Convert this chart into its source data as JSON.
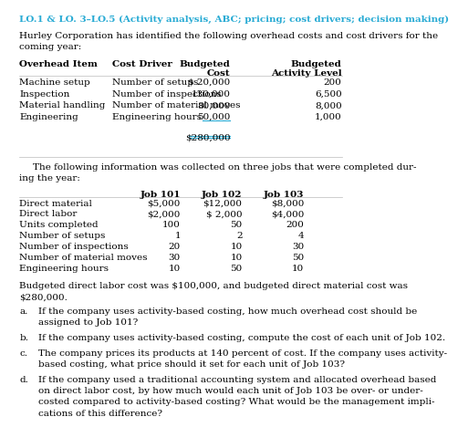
{
  "title": "LO.1 & LO. 3–LO.5 (Activity analysis, ABC; pricing; cost drivers; decision making)",
  "title_color": "#29ABD4",
  "bg_color": "#FFFFFF",
  "text_color": "#000000",
  "line_color": "#BBBBBB",
  "underline_color": "#29ABD4",
  "font_size": 7.5,
  "table1_rows": [
    [
      "Machine setup",
      "Number of setups",
      "$ 20,000",
      "200"
    ],
    [
      "Inspection",
      "Number of inspections",
      "130,000",
      "6,500"
    ],
    [
      "Material handling",
      "Number of material moves",
      "80,000",
      "8,000"
    ],
    [
      "Engineering",
      "Engineering hours",
      "50,000",
      "1,000"
    ]
  ],
  "table1_total": "$280,000",
  "table2_rows": [
    [
      "Direct material",
      "$5,000",
      "$12,000",
      "$8,000"
    ],
    [
      "Direct labor",
      "$2,000",
      "$ 2,000",
      "$4,000"
    ],
    [
      "Units completed",
      "100",
      "50",
      "200"
    ],
    [
      "Number of setups",
      "1",
      "2",
      "4"
    ],
    [
      "Number of inspections",
      "20",
      "10",
      "30"
    ],
    [
      "Number of material moves",
      "30",
      "10",
      "50"
    ],
    [
      "Engineering hours",
      "10",
      "50",
      "10"
    ]
  ]
}
